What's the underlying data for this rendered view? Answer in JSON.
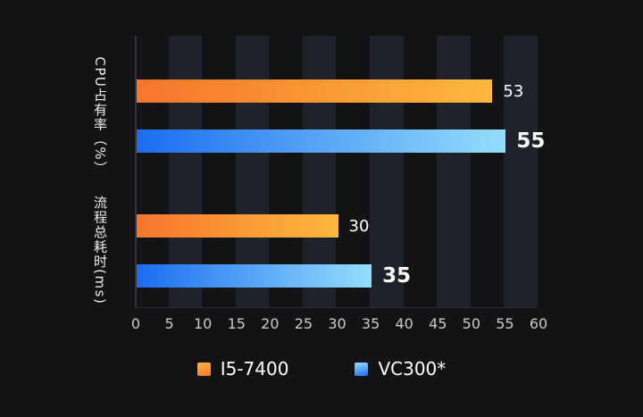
{
  "page": {
    "background_color": "#131316"
  },
  "chart_data": {
    "type": "bar",
    "orientation": "horizontal",
    "title": "",
    "categories": [
      "CPU占有率（%）",
      "流程总耗时(ms)"
    ],
    "series": [
      {
        "name": "I5-7400",
        "values": [
          53,
          30
        ],
        "color_start": "#f7752c",
        "color_end": "#fcb83d",
        "emphasis": false
      },
      {
        "name": "VC300*",
        "values": [
          55,
          35
        ],
        "color_start": "#1c6cf2",
        "color_end": "#94defb",
        "emphasis": true
      }
    ],
    "axis": {
      "min": 0,
      "max": 60,
      "step": 5,
      "ticks": [
        0,
        5,
        10,
        15,
        20,
        25,
        30,
        35,
        40,
        45,
        50,
        55,
        60
      ],
      "tick_color": "#c7c9cd"
    },
    "layout": {
      "legend_position": "bottom",
      "grid": "off",
      "band_starts": [
        5,
        15,
        25,
        35,
        45,
        55
      ],
      "band_width": 5,
      "band_color": "#1e222b",
      "plot_background": "#131316",
      "axis_line_color": "#32353e"
    }
  }
}
